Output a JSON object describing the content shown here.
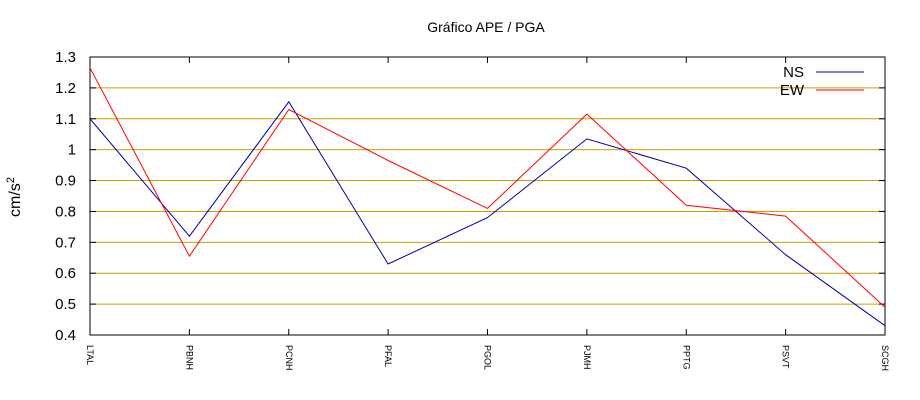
{
  "chart_data": {
    "type": "line",
    "title": "Gráfico  APE / PGA",
    "ylabel": "cm/s",
    "ylabel_sup": "2",
    "xlabel": "",
    "categories": [
      "LTAL",
      "PBNH",
      "PCNH",
      "PFAL",
      "PGOL",
      "PJMH",
      "PPTG",
      "PSVT",
      "SCGH"
    ],
    "ylim": [
      0.4,
      1.3
    ],
    "yticks": [
      "0.4",
      "0.5",
      "0.6",
      "0.7",
      "0.8",
      "0.9",
      "1",
      "1.1",
      "1.2",
      "1.3"
    ],
    "grid": true,
    "legend": "top-right",
    "series": [
      {
        "name": "NS",
        "color": "#0000a0",
        "values": [
          1.1,
          0.72,
          1.155,
          0.63,
          0.78,
          1.035,
          0.94,
          0.66,
          0.43
        ]
      },
      {
        "name": "EW",
        "color": "#ff0000",
        "values": [
          1.265,
          0.655,
          1.13,
          0.965,
          0.81,
          1.115,
          0.82,
          0.785,
          0.49
        ]
      }
    ],
    "colors": {
      "grid": "#c8a000",
      "axis": "#000000"
    }
  }
}
